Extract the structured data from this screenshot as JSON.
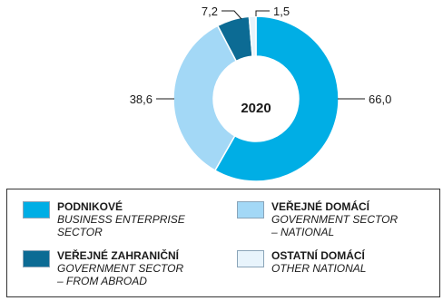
{
  "chart_data": {
    "type": "pie",
    "center_label": "2020",
    "slices": [
      {
        "value": 66.0,
        "label": "66,0",
        "color": "#00aee5"
      },
      {
        "value": 38.6,
        "label": "38,6",
        "color": "#a3d8f6"
      },
      {
        "value": 7.2,
        "label": "7,2",
        "color": "#0c6b94"
      },
      {
        "value": 1.5,
        "label": "1,5",
        "color": "#e8f4fc"
      }
    ],
    "legend": [
      {
        "cz": "PODNIKOVÉ",
        "en": "BUSINESS ENTERPRISE\nSECTOR",
        "color": "#00aee5"
      },
      {
        "cz": "VEŘEJNÉ DOMÁCÍ",
        "en": "GOVERNMENT SECTOR\n– NATIONAL",
        "color": "#a3d8f6"
      },
      {
        "cz": "VEŘEJNÉ ZAHRANIČNÍ",
        "en": "GOVERNMENT SECTOR\n– FROM ABROAD",
        "color": "#0c6b94"
      },
      {
        "cz": "OSTATNÍ DOMÁCÍ",
        "en": "OTHER NATIONAL",
        "color": "#e8f4fc"
      }
    ]
  }
}
